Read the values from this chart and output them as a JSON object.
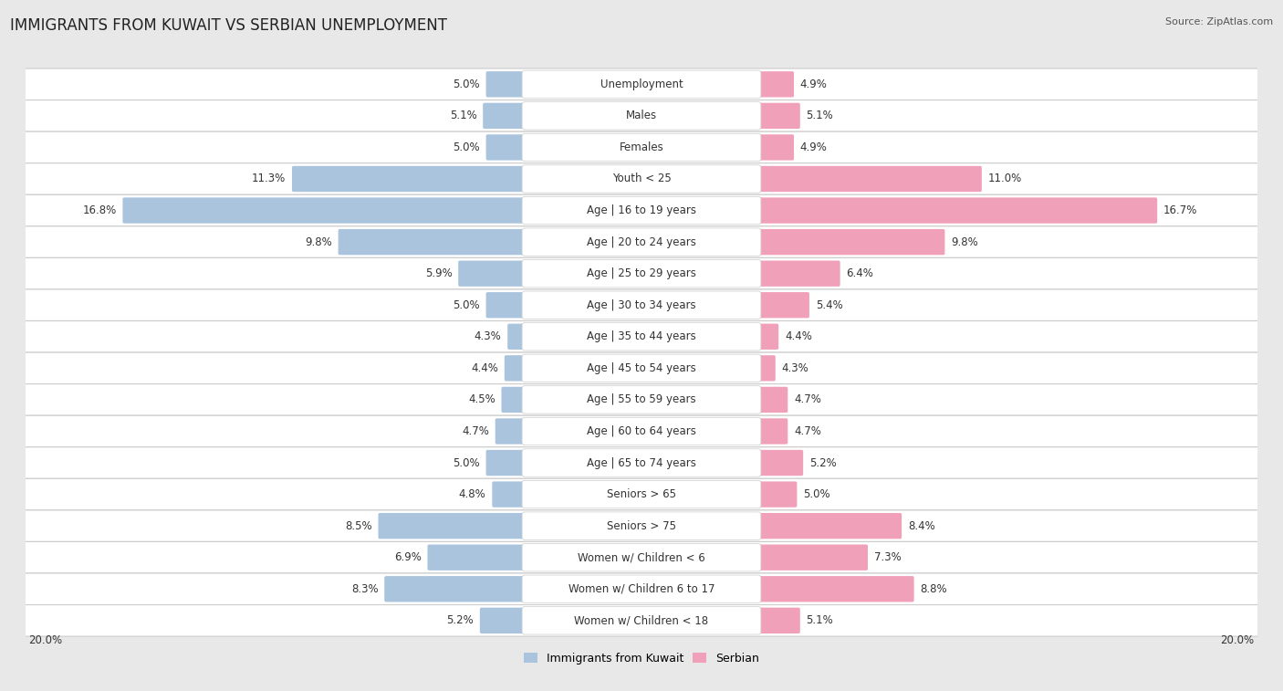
{
  "title": "IMMIGRANTS FROM KUWAIT VS SERBIAN UNEMPLOYMENT",
  "source": "Source: ZipAtlas.com",
  "categories": [
    "Unemployment",
    "Males",
    "Females",
    "Youth < 25",
    "Age | 16 to 19 years",
    "Age | 20 to 24 years",
    "Age | 25 to 29 years",
    "Age | 30 to 34 years",
    "Age | 35 to 44 years",
    "Age | 45 to 54 years",
    "Age | 55 to 59 years",
    "Age | 60 to 64 years",
    "Age | 65 to 74 years",
    "Seniors > 65",
    "Seniors > 75",
    "Women w/ Children < 6",
    "Women w/ Children 6 to 17",
    "Women w/ Children < 18"
  ],
  "kuwait_values": [
    5.0,
    5.1,
    5.0,
    11.3,
    16.8,
    9.8,
    5.9,
    5.0,
    4.3,
    4.4,
    4.5,
    4.7,
    5.0,
    4.8,
    8.5,
    6.9,
    8.3,
    5.2
  ],
  "serbian_values": [
    4.9,
    5.1,
    4.9,
    11.0,
    16.7,
    9.8,
    6.4,
    5.4,
    4.4,
    4.3,
    4.7,
    4.7,
    5.2,
    5.0,
    8.4,
    7.3,
    8.8,
    5.1
  ],
  "kuwait_color": "#aac4de",
  "serbian_color": "#f0a0b8",
  "kuwait_label": "Immigrants from Kuwait",
  "serbian_label": "Serbian",
  "x_max": 20.0,
  "background_color": "#e8e8e8",
  "title_fontsize": 12,
  "label_fontsize": 8.5,
  "value_fontsize": 8.5,
  "legend_fontsize": 9
}
